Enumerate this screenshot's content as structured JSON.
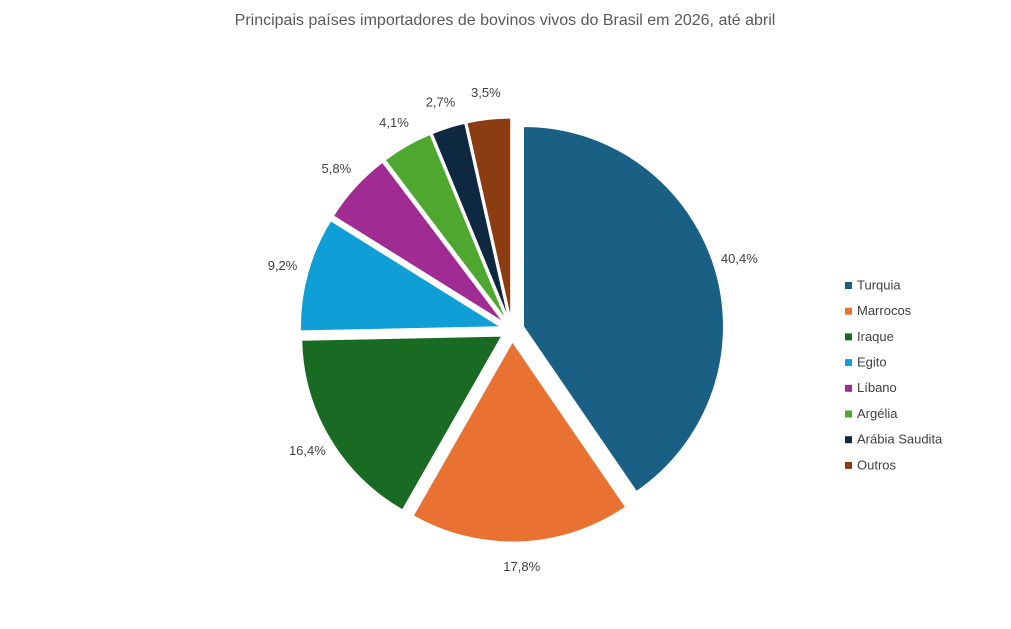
{
  "chart_data": {
    "type": "pie",
    "title": "Principais países importadores de bovinos vivos do Brasil em 2026, até abril",
    "categories": [
      "Turquia",
      "Marrocos",
      "Iraque",
      "Egito",
      "Líbano",
      "Argélia",
      "Arábia Saudita",
      "Outros"
    ],
    "values": [
      40.4,
      17.8,
      16.4,
      9.2,
      5.8,
      4.1,
      2.7,
      3.5
    ],
    "value_labels": [
      "40,4%",
      "17,8%",
      "16,4%",
      "9,2%",
      "5,8%",
      "4,1%",
      "2,7%",
      "3,5%"
    ],
    "colors": [
      "#1a5f84",
      "#e97132",
      "#196b24",
      "#0f9ed5",
      "#a02b93",
      "#4ea72e",
      "#0e2841",
      "#8b3c10"
    ],
    "legend": "right"
  }
}
